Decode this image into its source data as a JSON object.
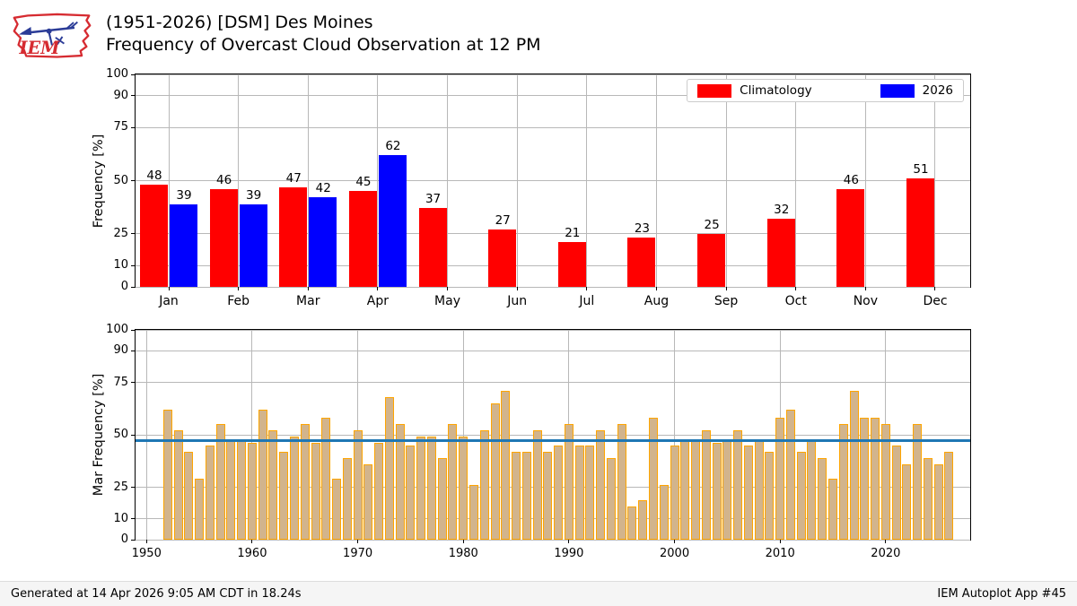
{
  "header": {
    "title_line1": "(1951-2026) [DSM] Des Moines",
    "title_line2": "Frequency of Overcast Cloud Observation at 12 PM",
    "logo_text": "IEM"
  },
  "footer": {
    "generated": "Generated at 14 Apr 2026 9:05 AM CDT in 18.24s",
    "app": "IEM Autoplot App #45"
  },
  "colors": {
    "climatology": "#ff0000",
    "year2026": "#0000ff",
    "march_bar_fill": "#d2b48c",
    "march_bar_edge": "#ffa500",
    "avg_line": "#1f77b4",
    "grid": "#b8b8b8",
    "logo_red": "#d62b31",
    "logo_blue": "#2b3c97"
  },
  "chart_data": [
    {
      "type": "bar",
      "title": "Monthly frequency of overcast at 12 PM",
      "ylabel": "Frequency [%]",
      "ylim": [
        0,
        100
      ],
      "yticks": [
        0,
        10,
        25,
        50,
        75,
        90,
        100
      ],
      "grid": true,
      "legend_position": "top-right",
      "categories": [
        "Jan",
        "Feb",
        "Mar",
        "Apr",
        "May",
        "Jun",
        "Jul",
        "Aug",
        "Sep",
        "Oct",
        "Nov",
        "Dec"
      ],
      "series": [
        {
          "name": "Climatology",
          "color_key": "climatology",
          "values": [
            48,
            46,
            47,
            45,
            37,
            27,
            21,
            23,
            25,
            32,
            46,
            51
          ]
        },
        {
          "name": "2026",
          "color_key": "year2026",
          "values": [
            39,
            39,
            42,
            62,
            null,
            null,
            null,
            null,
            null,
            null,
            null,
            null
          ]
        }
      ]
    },
    {
      "type": "bar",
      "title": "March frequency by year",
      "ylabel": "Mar Frequency [%]",
      "ylim": [
        0,
        100
      ],
      "yticks": [
        0,
        10,
        25,
        50,
        75,
        90,
        100
      ],
      "xticks": [
        1950,
        1960,
        1970,
        1980,
        1990,
        2000,
        2010,
        2020
      ],
      "xlim": [
        1949,
        2028
      ],
      "grid": true,
      "avg_line_value": 47.3,
      "years": [
        1952,
        1953,
        1954,
        1955,
        1956,
        1957,
        1958,
        1959,
        1960,
        1961,
        1962,
        1963,
        1964,
        1965,
        1966,
        1967,
        1968,
        1969,
        1970,
        1971,
        1972,
        1973,
        1974,
        1975,
        1976,
        1977,
        1978,
        1979,
        1980,
        1981,
        1982,
        1983,
        1984,
        1985,
        1986,
        1987,
        1988,
        1989,
        1990,
        1991,
        1992,
        1993,
        1994,
        1995,
        1996,
        1997,
        1998,
        1999,
        2000,
        2001,
        2002,
        2003,
        2004,
        2005,
        2006,
        2007,
        2008,
        2009,
        2010,
        2011,
        2012,
        2013,
        2014,
        2015,
        2016,
        2017,
        2018,
        2019,
        2020,
        2021,
        2022,
        2023,
        2024,
        2025,
        2026
      ],
      "values": [
        62,
        52,
        42,
        29,
        45,
        55,
        48,
        48,
        46,
        62,
        52,
        42,
        49,
        55,
        46,
        58,
        29,
        39,
        52,
        36,
        46,
        68,
        55,
        45,
        49,
        49,
        39,
        55,
        49,
        26,
        52,
        65,
        71,
        42,
        42,
        52,
        42,
        45,
        55,
        45,
        45,
        52,
        39,
        55,
        16,
        19,
        58,
        26,
        45,
        48,
        48,
        52,
        46,
        48,
        52,
        45,
        48,
        42,
        58,
        62,
        42,
        48,
        39,
        29,
        55,
        71,
        58,
        58,
        55,
        45,
        36,
        55,
        39,
        36,
        42
      ]
    }
  ]
}
